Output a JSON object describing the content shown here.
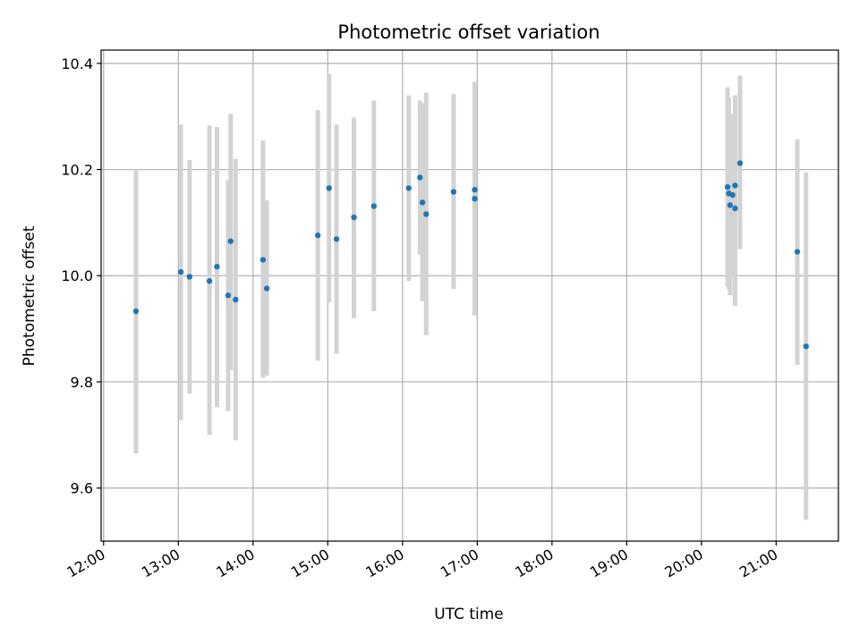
{
  "chart_data": {
    "type": "scatter",
    "title": "Photometric offset variation",
    "xlabel": "UTC time",
    "ylabel": "Photometric offset",
    "x_ticks": [
      "12:00",
      "13:00",
      "14:00",
      "15:00",
      "16:00",
      "17:00",
      "18:00",
      "19:00",
      "20:00",
      "21:00"
    ],
    "y_ticks": [
      "9.6",
      "9.8",
      "10.0",
      "10.2",
      "10.4"
    ],
    "xlim": [
      "11:58",
      "21:50"
    ],
    "ylim": [
      9.5,
      10.425
    ],
    "grid": true,
    "colors": {
      "points": "#1f77b4",
      "error_bars": "#d3d3d3"
    },
    "points": [
      {
        "x": "12:26",
        "y": 9.933,
        "y_low": 9.665,
        "y_high": 10.2
      },
      {
        "x": "13:02",
        "y": 10.007,
        "y_low": 9.728,
        "y_high": 10.285
      },
      {
        "x": "13:09",
        "y": 9.998,
        "y_low": 9.778,
        "y_high": 10.218
      },
      {
        "x": "13:25",
        "y": 9.99,
        "y_low": 9.7,
        "y_high": 10.283
      },
      {
        "x": "13:31",
        "y": 10.017,
        "y_low": 9.752,
        "y_high": 10.28
      },
      {
        "x": "13:40",
        "y": 9.963,
        "y_low": 9.745,
        "y_high": 10.18
      },
      {
        "x": "13:42",
        "y": 10.065,
        "y_low": 9.822,
        "y_high": 10.305
      },
      {
        "x": "13:46",
        "y": 9.955,
        "y_low": 9.69,
        "y_high": 10.22
      },
      {
        "x": "14:08",
        "y": 10.03,
        "y_low": 9.808,
        "y_high": 10.255
      },
      {
        "x": "14:11",
        "y": 9.976,
        "y_low": 9.812,
        "y_high": 10.142
      },
      {
        "x": "14:52",
        "y": 10.076,
        "y_low": 9.84,
        "y_high": 10.312
      },
      {
        "x": "15:01",
        "y": 10.165,
        "y_low": 9.95,
        "y_high": 10.38
      },
      {
        "x": "15:07",
        "y": 10.069,
        "y_low": 9.853,
        "y_high": 10.285
      },
      {
        "x": "15:21",
        "y": 10.11,
        "y_low": 9.92,
        "y_high": 10.298
      },
      {
        "x": "15:37",
        "y": 10.131,
        "y_low": 9.933,
        "y_high": 10.33
      },
      {
        "x": "16:05",
        "y": 10.165,
        "y_low": 9.99,
        "y_high": 10.34
      },
      {
        "x": "16:14",
        "y": 10.185,
        "y_low": 10.04,
        "y_high": 10.33
      },
      {
        "x": "16:16",
        "y": 10.138,
        "y_low": 9.952,
        "y_high": 10.325
      },
      {
        "x": "16:19",
        "y": 10.116,
        "y_low": 9.888,
        "y_high": 10.345
      },
      {
        "x": "16:41",
        "y": 10.158,
        "y_low": 9.975,
        "y_high": 10.342
      },
      {
        "x": "16:58",
        "y": 10.145,
        "y_low": 9.925,
        "y_high": 10.365
      },
      {
        "x": "16:58",
        "y": 10.162,
        "y_low": 9.925,
        "y_high": 10.365
      },
      {
        "x": "20:21",
        "y": 10.167,
        "y_low": 9.98,
        "y_high": 10.355
      },
      {
        "x": "20:22",
        "y": 10.155,
        "y_low": 9.975,
        "y_high": 10.335
      },
      {
        "x": "20:23",
        "y": 10.133,
        "y_low": 9.963,
        "y_high": 10.3
      },
      {
        "x": "20:25",
        "y": 10.152,
        "y_low": 10.0,
        "y_high": 10.305
      },
      {
        "x": "20:27",
        "y": 10.127,
        "y_low": 9.943,
        "y_high": 10.34
      },
      {
        "x": "20:27",
        "y": 10.17,
        "y_low": 9.945,
        "y_high": 10.34
      },
      {
        "x": "20:31",
        "y": 10.212,
        "y_low": 10.05,
        "y_high": 10.377
      },
      {
        "x": "21:17",
        "y": 10.045,
        "y_low": 9.832,
        "y_high": 10.257
      },
      {
        "x": "21:24",
        "y": 9.867,
        "y_low": 9.54,
        "y_high": 10.195
      }
    ]
  }
}
